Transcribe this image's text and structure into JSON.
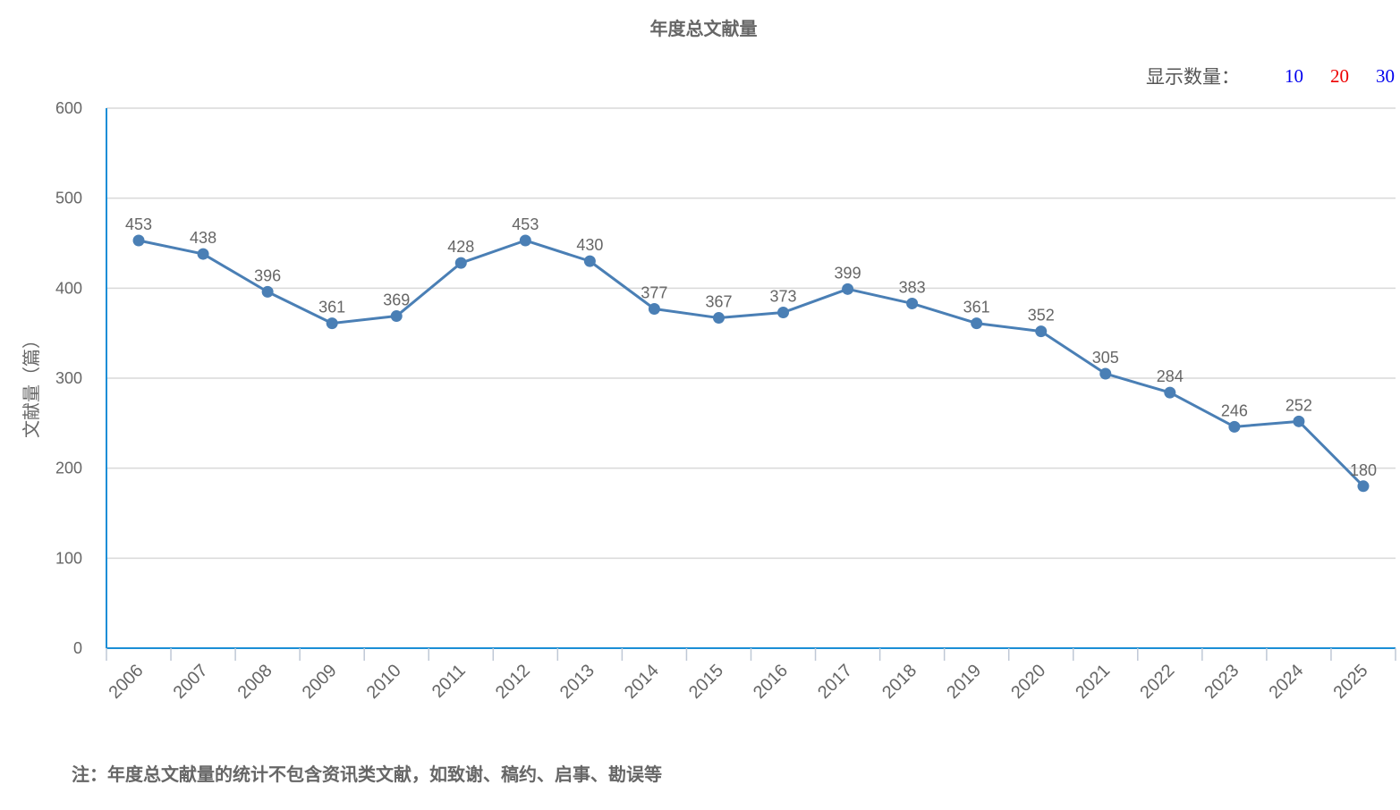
{
  "title": "年度总文献量",
  "count_selector": {
    "label": "显示数量：",
    "options": [
      {
        "label": "10",
        "color": "#0000ee"
      },
      {
        "label": "20",
        "color": "#ee0000"
      },
      {
        "label": "30",
        "color": "#0000ee"
      }
    ]
  },
  "note": "注：年度总文献量的统计不包含资讯类文献，如致谢、稿约、启事、勘误等",
  "colors": {
    "line": "#4a7fb5",
    "axis": "#1a8ed6",
    "grid": "#d9d9d9",
    "text": "#666666"
  },
  "chart_data": {
    "type": "line",
    "title": "年度总文献量",
    "ylabel": "文献量（篇）",
    "xlabel": "",
    "ylim": [
      0,
      600
    ],
    "yticks": [
      0,
      100,
      200,
      300,
      400,
      500,
      600
    ],
    "grid": true,
    "data_labels": true,
    "categories": [
      "2006",
      "2007",
      "2008",
      "2009",
      "2010",
      "2011",
      "2012",
      "2013",
      "2014",
      "2015",
      "2016",
      "2017",
      "2018",
      "2019",
      "2020",
      "2021",
      "2022",
      "2023",
      "2024",
      "2025"
    ],
    "series": [
      {
        "values": [
          453,
          438,
          396,
          361,
          369,
          428,
          453,
          430,
          377,
          367,
          373,
          399,
          383,
          361,
          352,
          305,
          284,
          246,
          252,
          180
        ]
      }
    ]
  }
}
